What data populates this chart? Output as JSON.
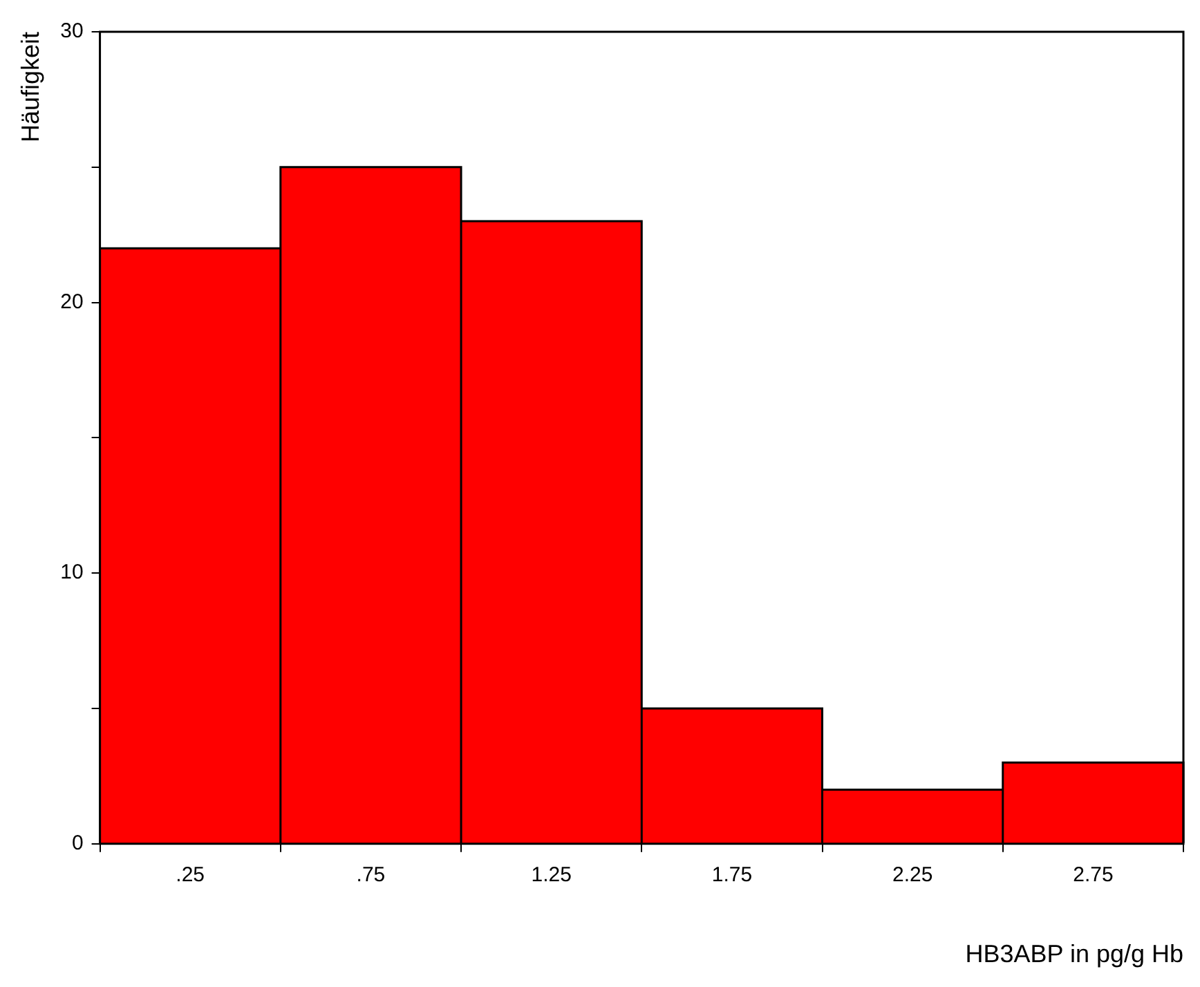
{
  "chart_data": {
    "type": "histogram",
    "xlabel": "HB3ABP in pg/g Hb",
    "ylabel": "Häufigkeit",
    "bins": [
      0,
      0.5,
      1,
      1.5,
      2,
      2.5,
      3
    ],
    "values": [
      22,
      25,
      23,
      5,
      2,
      3
    ],
    "color": "#ff0000",
    "xlim": [
      0,
      3
    ],
    "xticks": [
      {
        "value": 0.25,
        "label": ".25"
      },
      {
        "value": 0.75,
        "label": ".75"
      },
      {
        "value": 1.25,
        "label": "1.25"
      },
      {
        "value": 1.75,
        "label": "1.75"
      },
      {
        "value": 2.25,
        "label": "2.25"
      },
      {
        "value": 2.75,
        "label": "2.75"
      }
    ],
    "ylim": [
      0,
      30
    ],
    "yticks": [
      0,
      {
        "value": 5,
        "label": null
      },
      10,
      {
        "value": 15,
        "label": null
      },
      20,
      {
        "value": 25,
        "label": null
      },
      30
    ],
    "grid": false,
    "legend": false
  }
}
